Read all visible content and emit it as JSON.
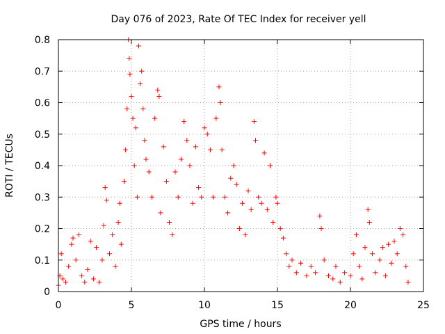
{
  "chart_data": {
    "type": "scatter",
    "title": "Day 076 of 2023, Rate Of TEC Index for receiver yell",
    "xlabel": "GPS time / hours",
    "ylabel": "ROTI / TECUs",
    "xlim": [
      0,
      25
    ],
    "ylim": [
      0,
      0.8
    ],
    "x_ticks": [
      0,
      5,
      10,
      15,
      20,
      25
    ],
    "y_ticks": [
      0,
      0.1,
      0.2,
      0.3,
      0.4,
      0.5,
      0.6,
      0.7,
      0.8
    ],
    "x_tick_labels": [
      "0",
      "5",
      "10",
      "15",
      "20",
      "25"
    ],
    "y_tick_labels": [
      "0",
      "0.1",
      "0.2",
      "0.3",
      "0.4",
      "0.5",
      "0.6",
      "0.7",
      "0.8"
    ],
    "grid": true,
    "marker": "+",
    "marker_color": "#ff0000",
    "series": [
      {
        "points": [
          [
            0.0,
            0.02
          ],
          [
            0.1,
            0.05
          ],
          [
            0.2,
            0.12
          ],
          [
            0.3,
            0.04
          ],
          [
            0.5,
            0.03
          ],
          [
            0.7,
            0.08
          ],
          [
            0.9,
            0.15
          ],
          [
            1.0,
            0.17
          ],
          [
            1.2,
            0.1
          ],
          [
            1.4,
            0.18
          ],
          [
            1.6,
            0.05
          ],
          [
            1.8,
            0.03
          ],
          [
            2.0,
            0.07
          ],
          [
            2.2,
            0.16
          ],
          [
            2.4,
            0.04
          ],
          [
            2.6,
            0.14
          ],
          [
            2.8,
            0.03
          ],
          [
            3.0,
            0.1
          ],
          [
            3.1,
            0.21
          ],
          [
            3.2,
            0.33
          ],
          [
            3.3,
            0.29
          ],
          [
            3.5,
            0.12
          ],
          [
            3.7,
            0.18
          ],
          [
            3.9,
            0.08
          ],
          [
            4.1,
            0.22
          ],
          [
            4.2,
            0.28
          ],
          [
            4.3,
            0.15
          ],
          [
            4.5,
            0.35
          ],
          [
            4.6,
            0.45
          ],
          [
            4.7,
            0.58
          ],
          [
            4.8,
            0.8
          ],
          [
            4.85,
            0.74
          ],
          [
            4.9,
            0.69
          ],
          [
            5.0,
            0.62
          ],
          [
            5.1,
            0.55
          ],
          [
            5.2,
            0.4
          ],
          [
            5.3,
            0.52
          ],
          [
            5.4,
            0.3
          ],
          [
            5.5,
            0.78
          ],
          [
            5.6,
            0.66
          ],
          [
            5.7,
            0.7
          ],
          [
            5.8,
            0.58
          ],
          [
            5.9,
            0.48
          ],
          [
            6.0,
            0.42
          ],
          [
            6.2,
            0.38
          ],
          [
            6.4,
            0.3
          ],
          [
            6.6,
            0.55
          ],
          [
            6.8,
            0.64
          ],
          [
            6.9,
            0.62
          ],
          [
            7.0,
            0.25
          ],
          [
            7.2,
            0.46
          ],
          [
            7.4,
            0.35
          ],
          [
            7.6,
            0.22
          ],
          [
            7.8,
            0.18
          ],
          [
            8.0,
            0.38
          ],
          [
            8.2,
            0.3
          ],
          [
            8.4,
            0.42
          ],
          [
            8.6,
            0.54
          ],
          [
            8.8,
            0.48
          ],
          [
            9.0,
            0.4
          ],
          [
            9.2,
            0.28
          ],
          [
            9.4,
            0.46
          ],
          [
            9.6,
            0.33
          ],
          [
            9.8,
            0.3
          ],
          [
            10.0,
            0.52
          ],
          [
            10.2,
            0.5
          ],
          [
            10.4,
            0.45
          ],
          [
            10.6,
            0.3
          ],
          [
            10.8,
            0.55
          ],
          [
            11.0,
            0.65
          ],
          [
            11.1,
            0.6
          ],
          [
            11.2,
            0.45
          ],
          [
            11.4,
            0.3
          ],
          [
            11.6,
            0.25
          ],
          [
            11.8,
            0.36
          ],
          [
            12.0,
            0.4
          ],
          [
            12.2,
            0.34
          ],
          [
            12.4,
            0.2
          ],
          [
            12.6,
            0.28
          ],
          [
            12.8,
            0.18
          ],
          [
            13.0,
            0.32
          ],
          [
            13.2,
            0.26
          ],
          [
            13.4,
            0.54
          ],
          [
            13.5,
            0.48
          ],
          [
            13.7,
            0.3
          ],
          [
            13.9,
            0.28
          ],
          [
            14.1,
            0.44
          ],
          [
            14.3,
            0.26
          ],
          [
            14.5,
            0.4
          ],
          [
            14.7,
            0.22
          ],
          [
            14.9,
            0.3
          ],
          [
            15.0,
            0.28
          ],
          [
            15.2,
            0.2
          ],
          [
            15.4,
            0.17
          ],
          [
            15.6,
            0.12
          ],
          [
            15.8,
            0.08
          ],
          [
            16.0,
            0.1
          ],
          [
            16.3,
            0.06
          ],
          [
            16.6,
            0.09
          ],
          [
            17.0,
            0.05
          ],
          [
            17.3,
            0.08
          ],
          [
            17.6,
            0.06
          ],
          [
            17.9,
            0.24
          ],
          [
            18.0,
            0.2
          ],
          [
            18.2,
            0.1
          ],
          [
            18.5,
            0.05
          ],
          [
            18.8,
            0.04
          ],
          [
            19.0,
            0.08
          ],
          [
            19.3,
            0.03
          ],
          [
            19.6,
            0.06
          ],
          [
            20.0,
            0.05
          ],
          [
            20.2,
            0.12
          ],
          [
            20.4,
            0.18
          ],
          [
            20.6,
            0.08
          ],
          [
            20.8,
            0.04
          ],
          [
            21.0,
            0.14
          ],
          [
            21.2,
            0.26
          ],
          [
            21.3,
            0.22
          ],
          [
            21.5,
            0.12
          ],
          [
            21.7,
            0.06
          ],
          [
            22.0,
            0.1
          ],
          [
            22.2,
            0.14
          ],
          [
            22.4,
            0.05
          ],
          [
            22.6,
            0.15
          ],
          [
            22.8,
            0.09
          ],
          [
            23.0,
            0.16
          ],
          [
            23.2,
            0.12
          ],
          [
            23.4,
            0.2
          ],
          [
            23.6,
            0.18
          ],
          [
            23.8,
            0.08
          ],
          [
            23.95,
            0.03
          ]
        ]
      }
    ]
  }
}
